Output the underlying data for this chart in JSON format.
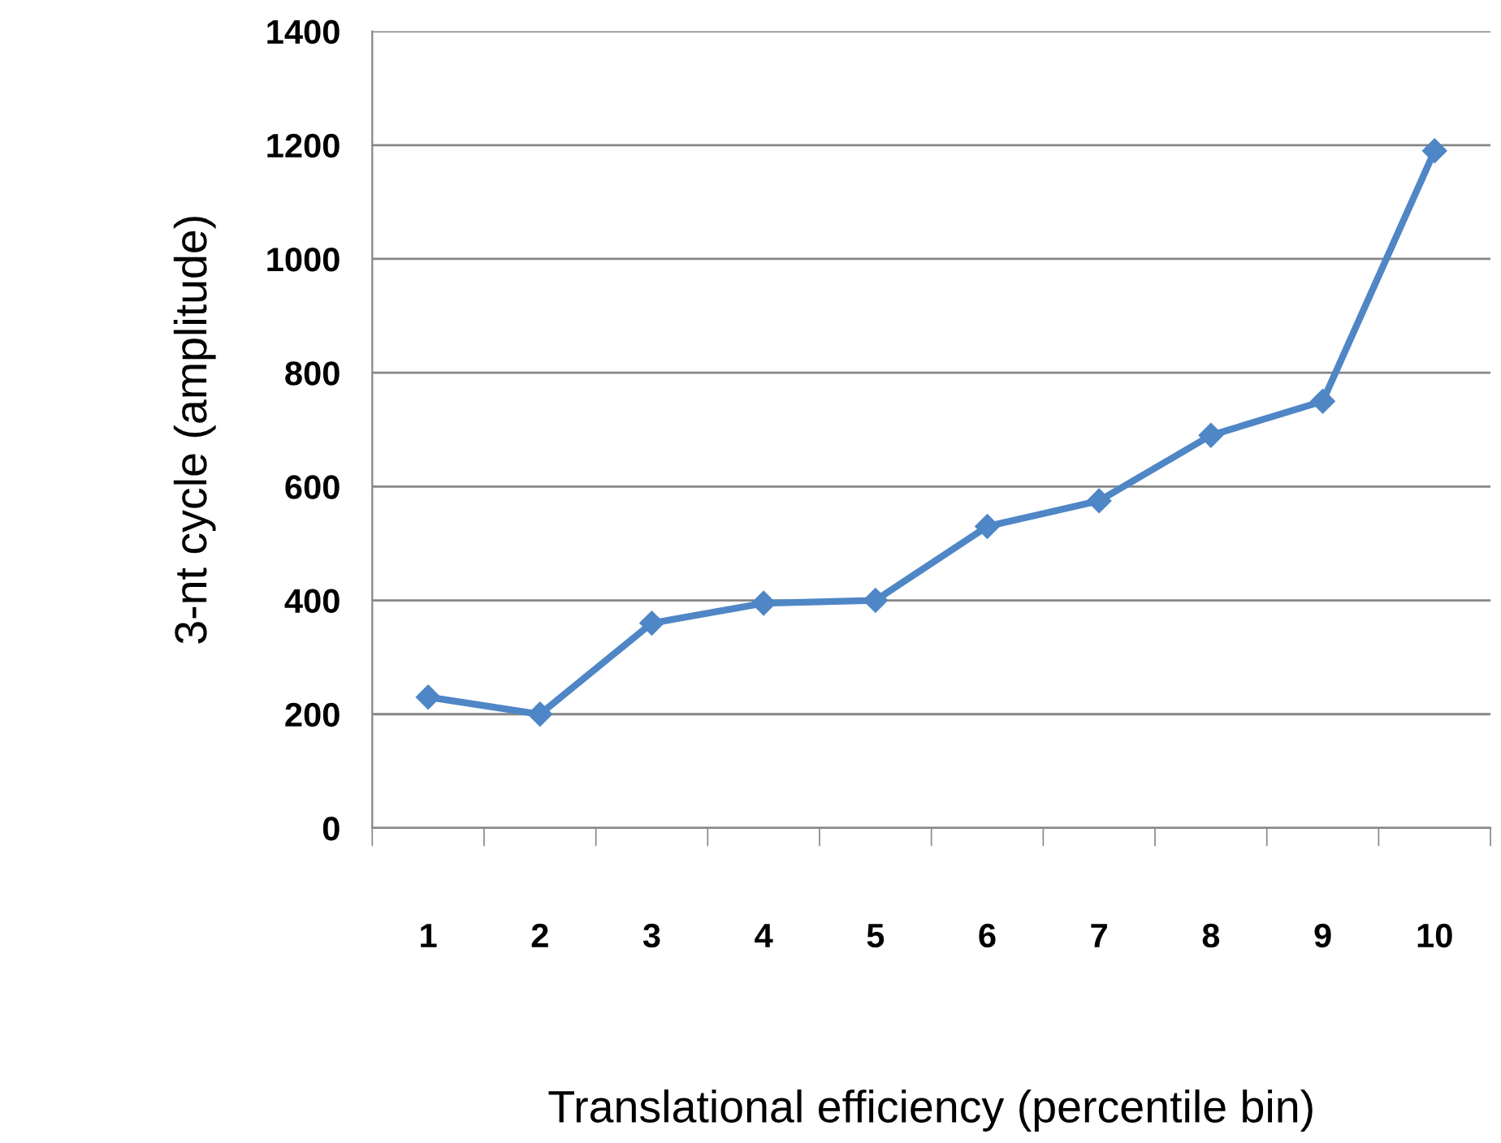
{
  "chart_data": {
    "type": "line",
    "xlabel": "Translational efficiency (percentile bin)",
    "ylabel": "3-nt cycle (amplitude)",
    "categories": [
      "1",
      "2",
      "3",
      "4",
      "5",
      "6",
      "7",
      "8",
      "9",
      "10"
    ],
    "series": [
      {
        "color": "#4f86c6",
        "values": [
          230,
          200,
          360,
          395,
          400,
          530,
          575,
          690,
          750,
          1190
        ]
      }
    ],
    "ylim": [
      0,
      1400
    ],
    "yticks": [
      0,
      200,
      400,
      600,
      800,
      1000,
      1200,
      1400
    ],
    "grid": "y",
    "marker": "diamond",
    "line_style": "solid",
    "legend": false
  }
}
